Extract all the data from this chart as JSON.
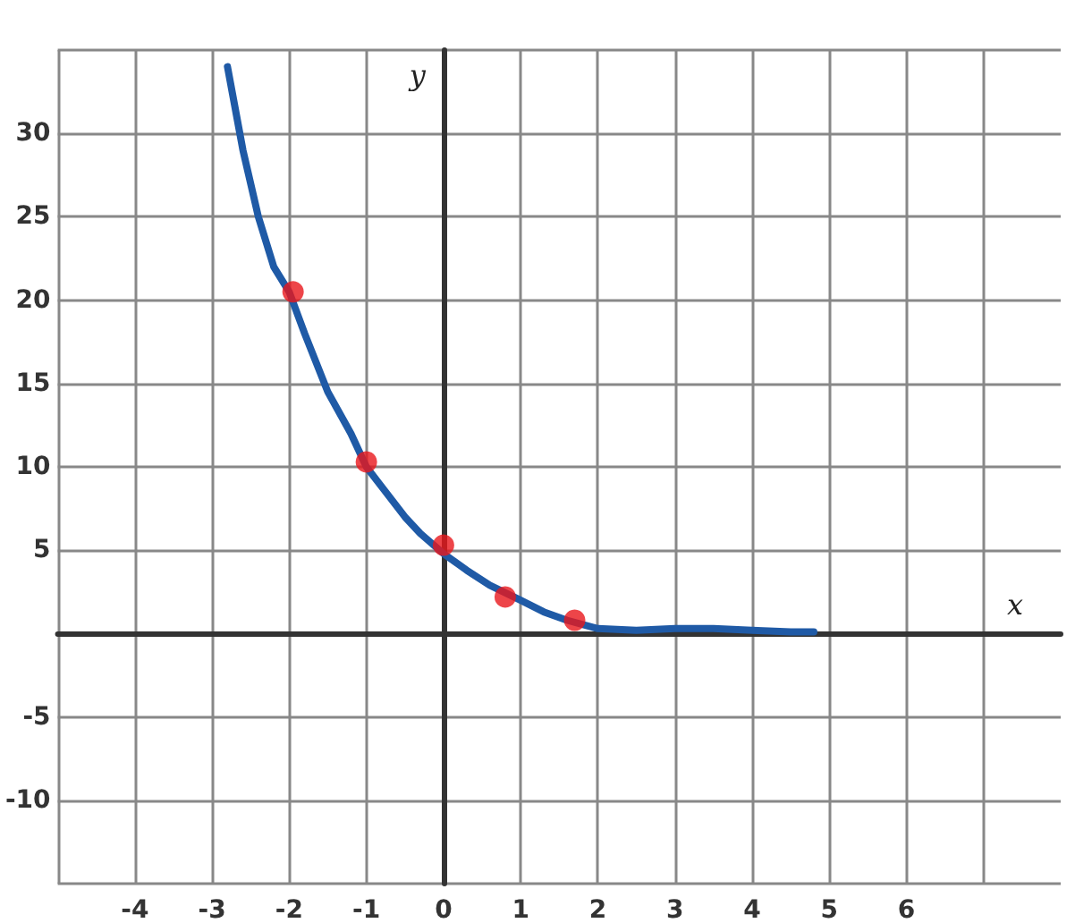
{
  "chart_data": {
    "type": "line",
    "xlabel": "x",
    "ylabel": "y",
    "xlim": [
      -5,
      8
    ],
    "ylim": [
      -15,
      35
    ],
    "xticks": [
      {
        "value": -5,
        "label": null
      },
      -4,
      -3,
      -2,
      -1,
      0,
      1,
      2,
      3,
      4,
      5,
      6,
      {
        "value": 7,
        "label": null
      }
    ],
    "yticks": [
      {
        "value": -15,
        "label": null
      },
      -10,
      -5,
      {
        "value": 0,
        "label": null
      },
      5,
      10,
      15,
      20,
      25,
      30,
      {
        "value": 35,
        "label": null
      }
    ],
    "grid": true,
    "marker": "none",
    "line_style": "solid",
    "series": [
      {
        "color": "#1f5aa6",
        "x": [
          -2.8,
          -2.6,
          -2.4,
          -2.2,
          -2,
          -1.8,
          -1.5,
          -1.2,
          -1,
          -0.8,
          -0.5,
          -0.3,
          0,
          0.3,
          0.6,
          1,
          1.3,
          1.6,
          2,
          2.5,
          3,
          3.5,
          4,
          4.5,
          4.8
        ],
        "values": [
          34,
          29,
          25,
          22,
          20.5,
          18,
          14.5,
          12,
          10,
          8.8,
          7,
          6,
          4.8,
          3.8,
          2.9,
          2,
          1.3,
          0.8,
          0.3,
          0.2,
          0.3,
          0.3,
          0.2,
          0.1,
          0.1
        ]
      },
      {
        "type": "scatter",
        "color": "#e8171b",
        "marker": "circle",
        "x": [
          -1.95,
          -1,
          0,
          0.8,
          1.7
        ],
        "values": [
          20.5,
          10.3,
          5.3,
          2.2,
          0.8
        ]
      }
    ]
  }
}
